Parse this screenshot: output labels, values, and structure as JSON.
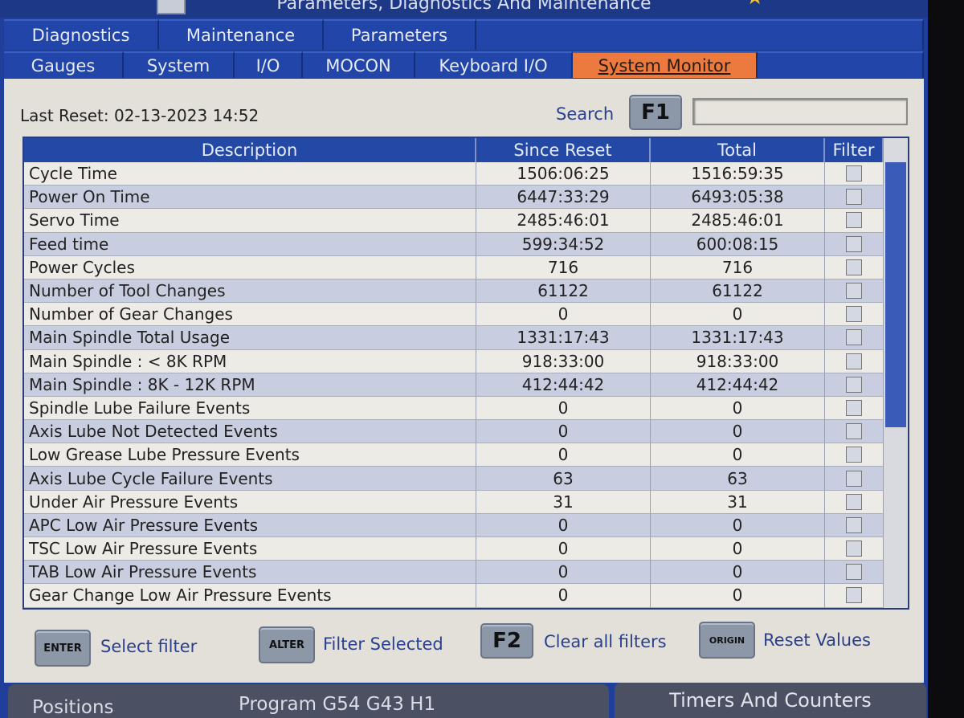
{
  "window": {
    "title": "Parameters, Diagnostics And Maintenance"
  },
  "tabs_top": [
    {
      "label": "Diagnostics"
    },
    {
      "label": "Maintenance"
    },
    {
      "label": "Parameters"
    }
  ],
  "tabs_sub": [
    {
      "label": "Gauges"
    },
    {
      "label": "System"
    },
    {
      "label": "I/O"
    },
    {
      "label": "MOCON"
    },
    {
      "label": "Keyboard I/O"
    },
    {
      "label": "System Monitor",
      "active": true
    }
  ],
  "last_reset": "Last Reset: 02-13-2023 14:52",
  "search": {
    "label": "Search",
    "key": "F1",
    "value": ""
  },
  "table": {
    "columns": [
      "Description",
      "Since Reset",
      "Total",
      "Filter"
    ],
    "rows": [
      {
        "d": "Cycle Time",
        "s": "1506:06:25",
        "t": "1516:59:35"
      },
      {
        "d": "Power On Time",
        "s": "6447:33:29",
        "t": "6493:05:38"
      },
      {
        "d": "Servo Time",
        "s": "2485:46:01",
        "t": "2485:46:01"
      },
      {
        "d": "Feed time",
        "s": "599:34:52",
        "t": "600:08:15"
      },
      {
        "d": "Power Cycles",
        "s": "716",
        "t": "716"
      },
      {
        "d": "Number of Tool Changes",
        "s": "61122",
        "t": "61122"
      },
      {
        "d": "Number of Gear Changes",
        "s": "0",
        "t": "0"
      },
      {
        "d": "Main Spindle Total Usage",
        "s": "1331:17:43",
        "t": "1331:17:43"
      },
      {
        "d": "Main Spindle : < 8K RPM",
        "s": "918:33:00",
        "t": "918:33:00"
      },
      {
        "d": "Main Spindle : 8K - 12K RPM",
        "s": "412:44:42",
        "t": "412:44:42"
      },
      {
        "d": "Spindle Lube Failure Events",
        "s": "0",
        "t": "0"
      },
      {
        "d": "Axis Lube Not Detected Events",
        "s": "0",
        "t": "0"
      },
      {
        "d": "Low Grease Lube Pressure Events",
        "s": "0",
        "t": "0"
      },
      {
        "d": "Axis Lube Cycle Failure Events",
        "s": "63",
        "t": "63"
      },
      {
        "d": "Under Air Pressure Events",
        "s": "31",
        "t": "31"
      },
      {
        "d": "APC Low Air Pressure Events",
        "s": "0",
        "t": "0"
      },
      {
        "d": "TSC Low Air Pressure Events",
        "s": "0",
        "t": "0"
      },
      {
        "d": "TAB Low Air Pressure Events",
        "s": "0",
        "t": "0"
      },
      {
        "d": "Gear Change Low Air Pressure Events",
        "s": "0",
        "t": "0"
      }
    ]
  },
  "hints": [
    {
      "key": "ENTER",
      "label": "Select filter"
    },
    {
      "key": "ALTER",
      "label": "Filter Selected"
    },
    {
      "key": "F2",
      "label": "Clear all filters"
    },
    {
      "key": "ORIGIN",
      "label": "Reset Values"
    }
  ],
  "bottom": {
    "positions": "Positions",
    "program": "Program G54 G43 H1",
    "timers": "Timers And Counters"
  },
  "colors": {
    "accent_tab": "#ec7a3e",
    "header_blue": "#2448a6"
  }
}
